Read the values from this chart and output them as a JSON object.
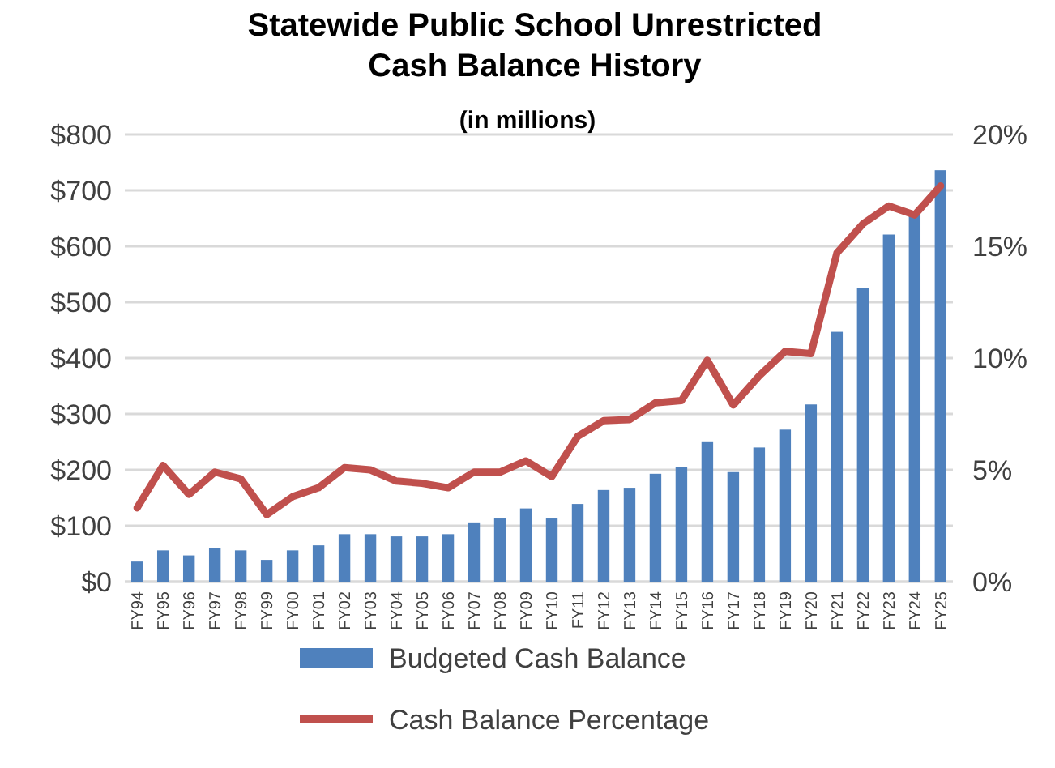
{
  "chart_data": {
    "type": "bar",
    "title": "Statewide Public School Unrestricted Cash Balance History",
    "subtitle": "(in millions)",
    "categories": [
      "FY94",
      "FY95",
      "FY96",
      "FY97",
      "FY98",
      "FY99",
      "FY00",
      "FY01",
      "FY02",
      "FY03",
      "FY04",
      "FY05",
      "FY06",
      "FY07",
      "FY08",
      "FY09",
      "FY10",
      "FY11",
      "FY12",
      "FY13",
      "FY14",
      "FY15",
      "FY16",
      "FY17",
      "FY18",
      "FY19",
      "FY20",
      "FY21",
      "FY22",
      "FY23",
      "FY24",
      "FY25"
    ],
    "series": [
      {
        "name": "Budgeted Cash Balance",
        "color": "#4f81bd",
        "values": [
          36,
          56,
          47,
          60,
          56,
          39,
          56,
          65,
          85,
          85,
          81,
          81,
          85,
          106,
          113,
          131,
          113,
          139,
          164,
          168,
          193,
          205,
          251,
          196,
          240,
          272,
          317,
          447,
          525,
          621,
          660,
          736
        ]
      },
      {
        "name": "Cash Balance Percentage",
        "type": "line",
        "axis": "y2",
        "color": "#c0504d",
        "values": [
          3.3,
          5.2,
          3.9,
          4.9,
          4.6,
          3.0,
          3.8,
          4.2,
          5.1,
          5.0,
          4.5,
          4.4,
          4.2,
          4.9,
          4.9,
          5.4,
          4.7,
          6.5,
          7.2,
          7.25,
          8.0,
          8.1,
          9.9,
          7.9,
          9.2,
          10.3,
          10.2,
          14.7,
          16.0,
          16.8,
          16.4,
          17.7
        ]
      }
    ],
    "ylim": [
      0,
      800
    ],
    "yticks": [
      {
        "value": 0,
        "label": "$0"
      },
      {
        "value": 100,
        "label": "$100"
      },
      {
        "value": 200,
        "label": "$200"
      },
      {
        "value": 300,
        "label": "$300"
      },
      {
        "value": 400,
        "label": "$400"
      },
      {
        "value": 500,
        "label": "$500"
      },
      {
        "value": 600,
        "label": "$600"
      },
      {
        "value": 700,
        "label": "$700"
      },
      {
        "value": 800,
        "label": "$800"
      }
    ],
    "y2lim": [
      0,
      20
    ],
    "y2ticks": [
      {
        "value": 0,
        "label": "0%"
      },
      {
        "value": 5,
        "label": "5%"
      },
      {
        "value": 10,
        "label": "10%"
      },
      {
        "value": 15,
        "label": "15%"
      },
      {
        "value": 20,
        "label": "20%"
      }
    ],
    "grid": "y",
    "legend": "bottom",
    "marker": "none",
    "line_style": "solid"
  }
}
